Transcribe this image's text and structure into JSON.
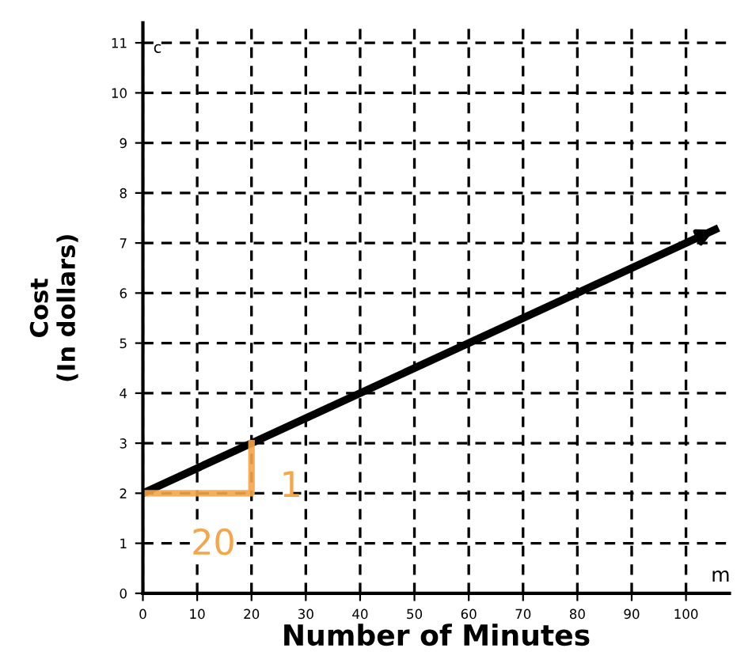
{
  "chart_data": {
    "type": "line",
    "xlabel": "Number of Minutes",
    "ylabel": "Cost\n(In dollars)",
    "series": [
      {
        "color": "#000000",
        "x": [
          0,
          20,
          106
        ],
        "values": [
          2,
          3,
          7.3
        ]
      }
    ],
    "xlim": [
      0,
      108
    ],
    "ylim": [
      0,
      11.4
    ],
    "xticks": [
      0,
      10,
      20,
      30,
      40,
      50,
      60,
      70,
      80,
      90,
      100
    ],
    "yticks": [
      0,
      1,
      2,
      3,
      4,
      5,
      6,
      7,
      8,
      9,
      10,
      11
    ],
    "grid": true,
    "marker": "none",
    "line_style": "solid",
    "annotations": [
      "c",
      "m",
      {
        "text": "1",
        "x": 20,
        "y": 3
      },
      "20"
    ]
  }
}
